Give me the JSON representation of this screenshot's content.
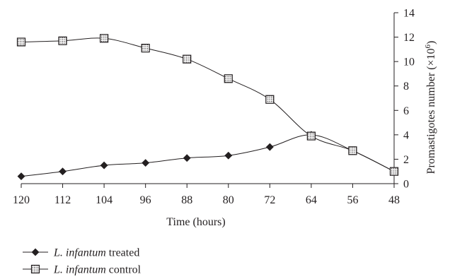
{
  "chart_data": {
    "type": "line",
    "xlabel": "Time (hours)",
    "ylabel": "Promastigotes number (×10",
    "ylabel_superscript": "6",
    "ylabel_close": ")",
    "x_categories": [
      "120",
      "112",
      "104",
      "96",
      "88",
      "80",
      "72",
      "64",
      "56",
      "48"
    ],
    "x": [
      120,
      112,
      104,
      96,
      88,
      80,
      72,
      64,
      56,
      48
    ],
    "xlim": [
      120,
      48
    ],
    "ylim": [
      0,
      14
    ],
    "y_ticks": [
      "0",
      "2",
      "4",
      "6",
      "8",
      "10",
      "12",
      "14"
    ],
    "y_axis_side": "right",
    "grid": false,
    "legend_position": "bottom-left",
    "series": [
      {
        "name_italic": "L. infantum",
        "name_rest": " treated",
        "marker": "diamond",
        "color": "#231f20",
        "values": [
          0.6,
          1.0,
          1.5,
          1.7,
          2.1,
          2.3,
          3.0,
          4.0,
          2.7,
          1.0
        ]
      },
      {
        "name_italic": "L. infantum",
        "name_rest": " control",
        "marker": "dotted-square",
        "color": "#231f20",
        "values": [
          11.6,
          11.7,
          11.9,
          11.1,
          10.2,
          8.6,
          6.9,
          3.9,
          2.7,
          1.0
        ]
      }
    ]
  }
}
